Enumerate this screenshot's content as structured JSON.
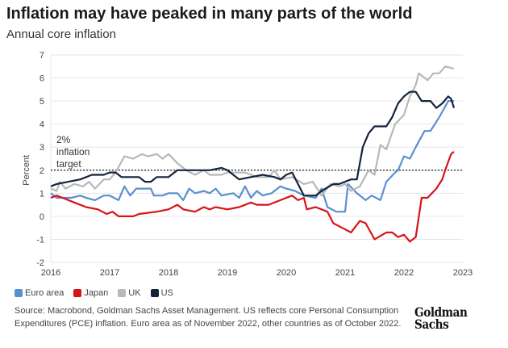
{
  "chart_data": {
    "type": "line",
    "title": "Inflation may have peaked in many parts of the world",
    "subtitle": "Annual core inflation",
    "xlabel": "",
    "ylabel": "Percent",
    "xlim": [
      2016,
      2023
    ],
    "ylim": [
      -2,
      7
    ],
    "x_ticks": [
      "2016",
      "2017",
      "2018",
      "2019",
      "2020",
      "2021",
      "2022",
      "2023"
    ],
    "y_ticks": [
      "-2",
      "-1",
      "0",
      "1",
      "2",
      "3",
      "4",
      "5",
      "6",
      "7"
    ],
    "grid": true,
    "legend_position": "bottom-left",
    "reference_line": {
      "value": 2,
      "label_lines": [
        "2%",
        "inflation",
        "target"
      ]
    },
    "series": [
      {
        "name": "Euro area",
        "color": "#5b8fd0",
        "points": [
          [
            2016,
            1.0
          ],
          [
            2016.1,
            0.8
          ],
          [
            2016.2,
            0.8
          ],
          [
            2016.35,
            0.8
          ],
          [
            2016.5,
            0.9
          ],
          [
            2016.6,
            0.8
          ],
          [
            2016.75,
            0.7
          ],
          [
            2016.9,
            0.9
          ],
          [
            2017.0,
            0.9
          ],
          [
            2017.15,
            0.7
          ],
          [
            2017.25,
            1.3
          ],
          [
            2017.35,
            0.9
          ],
          [
            2017.45,
            1.2
          ],
          [
            2017.7,
            1.2
          ],
          [
            2017.75,
            0.9
          ],
          [
            2017.9,
            0.9
          ],
          [
            2018.0,
            1.0
          ],
          [
            2018.15,
            1.0
          ],
          [
            2018.25,
            0.7
          ],
          [
            2018.35,
            1.2
          ],
          [
            2018.45,
            1.0
          ],
          [
            2018.6,
            1.1
          ],
          [
            2018.7,
            1.0
          ],
          [
            2018.8,
            1.2
          ],
          [
            2018.9,
            0.9
          ],
          [
            2019.1,
            1.0
          ],
          [
            2019.2,
            0.8
          ],
          [
            2019.3,
            1.3
          ],
          [
            2019.4,
            0.8
          ],
          [
            2019.5,
            1.1
          ],
          [
            2019.6,
            0.9
          ],
          [
            2019.75,
            1.0
          ],
          [
            2019.9,
            1.3
          ],
          [
            2020.0,
            1.2
          ],
          [
            2020.15,
            1.1
          ],
          [
            2020.3,
            0.9
          ],
          [
            2020.5,
            0.8
          ],
          [
            2020.6,
            1.2
          ],
          [
            2020.7,
            0.4
          ],
          [
            2020.85,
            0.2
          ],
          [
            2021.0,
            0.2
          ],
          [
            2021.05,
            1.4
          ],
          [
            2021.2,
            1.0
          ],
          [
            2021.35,
            0.7
          ],
          [
            2021.45,
            0.9
          ],
          [
            2021.6,
            0.7
          ],
          [
            2021.7,
            1.5
          ],
          [
            2021.85,
            1.9
          ],
          [
            2021.9,
            2.0
          ],
          [
            2022.0,
            2.6
          ],
          [
            2022.1,
            2.5
          ],
          [
            2022.2,
            3.0
          ],
          [
            2022.35,
            3.7
          ],
          [
            2022.45,
            3.7
          ],
          [
            2022.6,
            4.3
          ],
          [
            2022.75,
            5.0
          ],
          [
            2022.85,
            5.0
          ]
        ]
      },
      {
        "name": "Japan",
        "color": "#d7141a",
        "points": [
          [
            2016,
            0.8
          ],
          [
            2016.1,
            0.9
          ],
          [
            2016.2,
            0.8
          ],
          [
            2016.4,
            0.6
          ],
          [
            2016.6,
            0.4
          ],
          [
            2016.8,
            0.3
          ],
          [
            2016.95,
            0.1
          ],
          [
            2017.05,
            0.2
          ],
          [
            2017.15,
            0.0
          ],
          [
            2017.4,
            0.0
          ],
          [
            2017.5,
            0.1
          ],
          [
            2017.8,
            0.2
          ],
          [
            2018.0,
            0.3
          ],
          [
            2018.15,
            0.5
          ],
          [
            2018.25,
            0.3
          ],
          [
            2018.45,
            0.2
          ],
          [
            2018.6,
            0.4
          ],
          [
            2018.7,
            0.3
          ],
          [
            2018.8,
            0.4
          ],
          [
            2019.0,
            0.3
          ],
          [
            2019.2,
            0.4
          ],
          [
            2019.4,
            0.6
          ],
          [
            2019.5,
            0.5
          ],
          [
            2019.7,
            0.5
          ],
          [
            2019.9,
            0.7
          ],
          [
            2020.1,
            0.9
          ],
          [
            2020.2,
            0.7
          ],
          [
            2020.3,
            0.8
          ],
          [
            2020.35,
            0.3
          ],
          [
            2020.5,
            0.4
          ],
          [
            2020.7,
            0.2
          ],
          [
            2020.8,
            -0.3
          ],
          [
            2020.95,
            -0.5
          ],
          [
            2021.1,
            -0.7
          ],
          [
            2021.25,
            -0.2
          ],
          [
            2021.35,
            -0.3
          ],
          [
            2021.5,
            -1.0
          ],
          [
            2021.7,
            -0.7
          ],
          [
            2021.8,
            -0.7
          ],
          [
            2021.9,
            -0.9
          ],
          [
            2022.0,
            -0.8
          ],
          [
            2022.1,
            -1.1
          ],
          [
            2022.2,
            -0.9
          ],
          [
            2022.3,
            0.8
          ],
          [
            2022.4,
            0.8
          ],
          [
            2022.55,
            1.2
          ],
          [
            2022.65,
            1.6
          ],
          [
            2022.7,
            2.0
          ],
          [
            2022.8,
            2.7
          ],
          [
            2022.85,
            2.8
          ]
        ]
      },
      {
        "name": "UK",
        "color": "#b8b8b8",
        "points": [
          [
            2016,
            1.2
          ],
          [
            2016.1,
            1.1
          ],
          [
            2016.15,
            1.5
          ],
          [
            2016.25,
            1.2
          ],
          [
            2016.4,
            1.4
          ],
          [
            2016.55,
            1.3
          ],
          [
            2016.65,
            1.5
          ],
          [
            2016.75,
            1.2
          ],
          [
            2016.9,
            1.6
          ],
          [
            2017.0,
            1.6
          ],
          [
            2017.1,
            1.9
          ],
          [
            2017.25,
            2.6
          ],
          [
            2017.4,
            2.5
          ],
          [
            2017.55,
            2.7
          ],
          [
            2017.65,
            2.6
          ],
          [
            2017.8,
            2.7
          ],
          [
            2017.9,
            2.5
          ],
          [
            2018.0,
            2.7
          ],
          [
            2018.15,
            2.3
          ],
          [
            2018.3,
            2.0
          ],
          [
            2018.45,
            1.8
          ],
          [
            2018.6,
            2.0
          ],
          [
            2018.7,
            1.8
          ],
          [
            2018.9,
            1.8
          ],
          [
            2019.0,
            1.9
          ],
          [
            2019.3,
            1.9
          ],
          [
            2019.5,
            1.7
          ],
          [
            2019.7,
            1.7
          ],
          [
            2019.8,
            2.0
          ],
          [
            2019.9,
            1.6
          ],
          [
            2020.1,
            1.7
          ],
          [
            2020.3,
            1.4
          ],
          [
            2020.45,
            1.5
          ],
          [
            2020.6,
            0.9
          ],
          [
            2020.75,
            1.4
          ],
          [
            2020.9,
            1.3
          ],
          [
            2021.0,
            1.4
          ],
          [
            2021.1,
            1.1
          ],
          [
            2021.25,
            1.3
          ],
          [
            2021.4,
            2.0
          ],
          [
            2021.5,
            1.8
          ],
          [
            2021.6,
            3.1
          ],
          [
            2021.7,
            2.9
          ],
          [
            2021.85,
            4.0
          ],
          [
            2022.0,
            4.4
          ],
          [
            2022.1,
            5.2
          ],
          [
            2022.2,
            5.7
          ],
          [
            2022.25,
            6.2
          ],
          [
            2022.4,
            5.9
          ],
          [
            2022.5,
            6.2
          ],
          [
            2022.6,
            6.2
          ],
          [
            2022.7,
            6.5
          ],
          [
            2022.85,
            6.4
          ]
        ]
      },
      {
        "name": "US",
        "color": "#14233c",
        "points": [
          [
            2016,
            1.3
          ],
          [
            2016.1,
            1.4
          ],
          [
            2016.3,
            1.5
          ],
          [
            2016.5,
            1.6
          ],
          [
            2016.7,
            1.8
          ],
          [
            2016.9,
            1.8
          ],
          [
            2017.0,
            1.9
          ],
          [
            2017.1,
            1.9
          ],
          [
            2017.2,
            1.7
          ],
          [
            2017.5,
            1.7
          ],
          [
            2017.6,
            1.5
          ],
          [
            2017.7,
            1.5
          ],
          [
            2017.8,
            1.7
          ],
          [
            2018.0,
            1.7
          ],
          [
            2018.15,
            2.0
          ],
          [
            2018.3,
            2.0
          ],
          [
            2018.5,
            2.0
          ],
          [
            2018.7,
            2.0
          ],
          [
            2018.9,
            2.1
          ],
          [
            2019.0,
            2.0
          ],
          [
            2019.2,
            1.6
          ],
          [
            2019.4,
            1.7
          ],
          [
            2019.6,
            1.8
          ],
          [
            2019.8,
            1.7
          ],
          [
            2019.9,
            1.6
          ],
          [
            2020.0,
            1.8
          ],
          [
            2020.1,
            1.9
          ],
          [
            2020.3,
            0.9
          ],
          [
            2020.5,
            0.9
          ],
          [
            2020.6,
            1.1
          ],
          [
            2020.8,
            1.4
          ],
          [
            2020.9,
            1.4
          ],
          [
            2021.1,
            1.6
          ],
          [
            2021.2,
            1.6
          ],
          [
            2021.3,
            3.0
          ],
          [
            2021.4,
            3.6
          ],
          [
            2021.5,
            3.9
          ],
          [
            2021.7,
            3.9
          ],
          [
            2021.8,
            4.3
          ],
          [
            2021.9,
            4.9
          ],
          [
            2022.0,
            5.2
          ],
          [
            2022.1,
            5.4
          ],
          [
            2022.2,
            5.4
          ],
          [
            2022.3,
            5.0
          ],
          [
            2022.45,
            5.0
          ],
          [
            2022.55,
            4.7
          ],
          [
            2022.65,
            4.9
          ],
          [
            2022.75,
            5.2
          ],
          [
            2022.8,
            5.1
          ],
          [
            2022.85,
            4.7
          ]
        ]
      }
    ]
  },
  "source": "Source: Macrobond, Goldman Sachs Asset Management. US reflects core Personal Consumption Expenditures (PCE) inflation. Euro area as of November 2022, other countries as of October 2022.",
  "logo": {
    "line1": "Goldman",
    "line2": "Sachs"
  }
}
